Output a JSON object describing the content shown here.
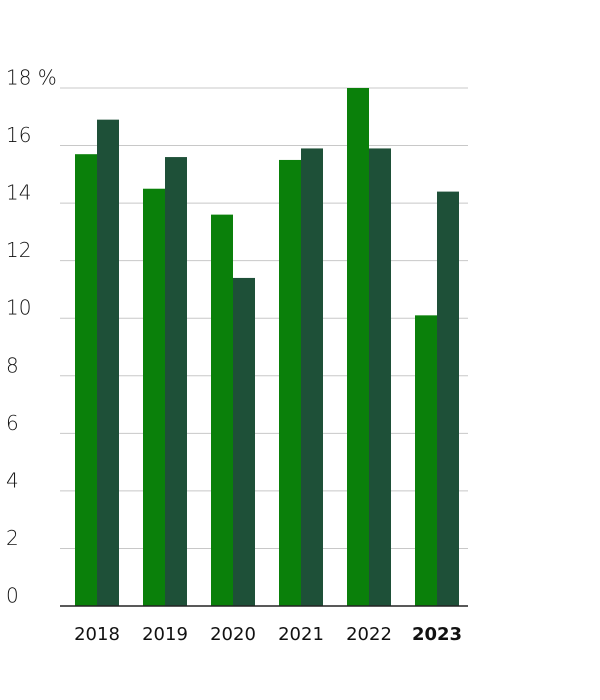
{
  "chart_data": {
    "type": "bar",
    "categories": [
      "2018",
      "2019",
      "2020",
      "2021",
      "2022",
      "2023"
    ],
    "series": [
      {
        "color": "#0a800a",
        "values": [
          15.7,
          14.5,
          13.6,
          15.5,
          18.0,
          10.1
        ]
      },
      {
        "color": "#1e5038",
        "values": [
          16.9,
          15.6,
          11.4,
          15.9,
          15.9,
          14.4
        ]
      }
    ],
    "ylim": [
      0,
      18
    ],
    "yticks": [
      0,
      2,
      4,
      6,
      8,
      10,
      12,
      14,
      16,
      {
        "value": 18,
        "label": "18 %"
      }
    ],
    "grid": true
  }
}
